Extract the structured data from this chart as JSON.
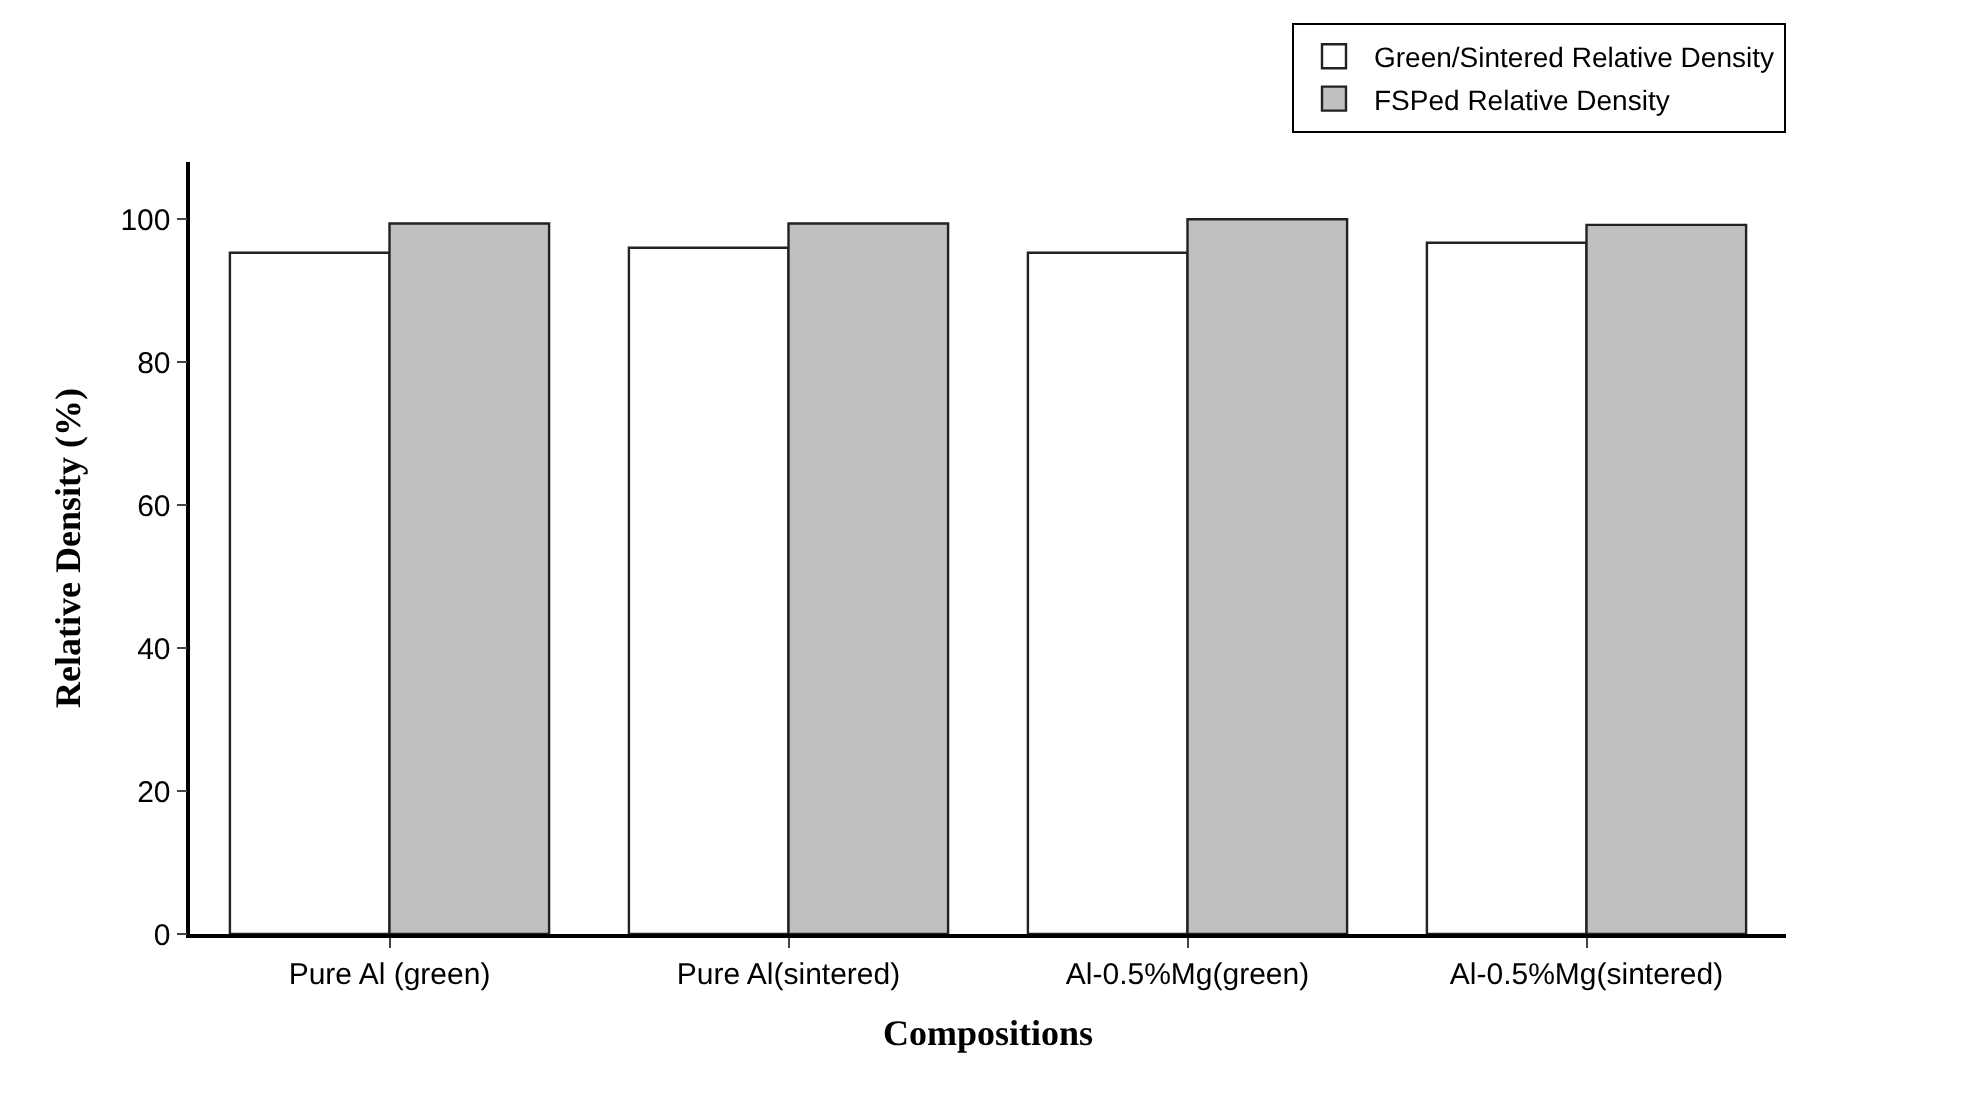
{
  "chart_data": {
    "type": "bar",
    "xlabel": "Compositions",
    "ylabel": "Relative Density (%)",
    "categories": [
      "Pure Al (green)",
      "Pure Al(sintered)",
      "Al-0.5%Mg(green)",
      "Al-0.5%Mg(sintered)"
    ],
    "series": [
      {
        "name": "Green/Sintered Relative Density",
        "color": "#ffffff",
        "values": [
          95.3,
          96.0,
          95.3,
          96.7
        ]
      },
      {
        "name": "FSPed Relative Density",
        "color": "#c0c0c0",
        "values": [
          99.4,
          99.4,
          100.0,
          99.2
        ]
      }
    ],
    "ylim": [
      0,
      108
    ],
    "yticks": [
      0,
      20,
      40,
      60,
      80,
      100
    ],
    "legend": "top right"
  }
}
